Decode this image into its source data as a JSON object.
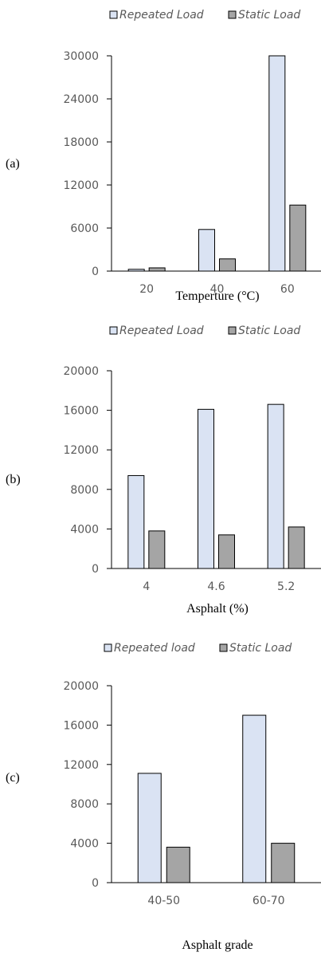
{
  "chart_data": [
    {
      "type": "bar",
      "panel_label": "(a)",
      "categories": [
        "20",
        "40",
        "60"
      ],
      "series": [
        {
          "name": "Repeated Load",
          "values": [
            250,
            5800,
            30000
          ],
          "color": "#dae3f3"
        },
        {
          "name": "Static Load",
          "values": [
            450,
            1700,
            9200
          ],
          "color": "#a5a5a5"
        }
      ],
      "ylim": [
        0,
        30000
      ],
      "yticks": [
        "0",
        "6000",
        "12000",
        "18000",
        "24000",
        "30000"
      ],
      "xlabel": "Temperture (°C)",
      "legend": "top-right",
      "grid": false
    },
    {
      "type": "bar",
      "panel_label": "(b)",
      "categories": [
        "4",
        "4.6",
        "5.2"
      ],
      "series": [
        {
          "name": "Repeated Load",
          "values": [
            9400,
            16100,
            16600
          ],
          "color": "#dae3f3"
        },
        {
          "name": "Static Load",
          "values": [
            3800,
            3400,
            4200
          ],
          "color": "#a5a5a5"
        }
      ],
      "ylim": [
        0,
        20000
      ],
      "yticks": [
        "0",
        "4000",
        "8000",
        "12000",
        "16000",
        "20000"
      ],
      "xlabel": "Asphalt (%)",
      "legend": "top-right",
      "grid": false
    },
    {
      "type": "bar",
      "panel_label": "(c)",
      "categories": [
        "40-50",
        "60-70"
      ],
      "series": [
        {
          "name": "Repeated load",
          "values": [
            11100,
            17000
          ],
          "color": "#dae3f3"
        },
        {
          "name": "Static Load",
          "values": [
            3600,
            4000
          ],
          "color": "#a5a5a5"
        }
      ],
      "ylim": [
        0,
        20000
      ],
      "yticks": [
        "0",
        "4000",
        "8000",
        "12000",
        "16000",
        "20000"
      ],
      "xlabel": "Asphalt grade",
      "legend": "top-right",
      "grid": false
    }
  ]
}
